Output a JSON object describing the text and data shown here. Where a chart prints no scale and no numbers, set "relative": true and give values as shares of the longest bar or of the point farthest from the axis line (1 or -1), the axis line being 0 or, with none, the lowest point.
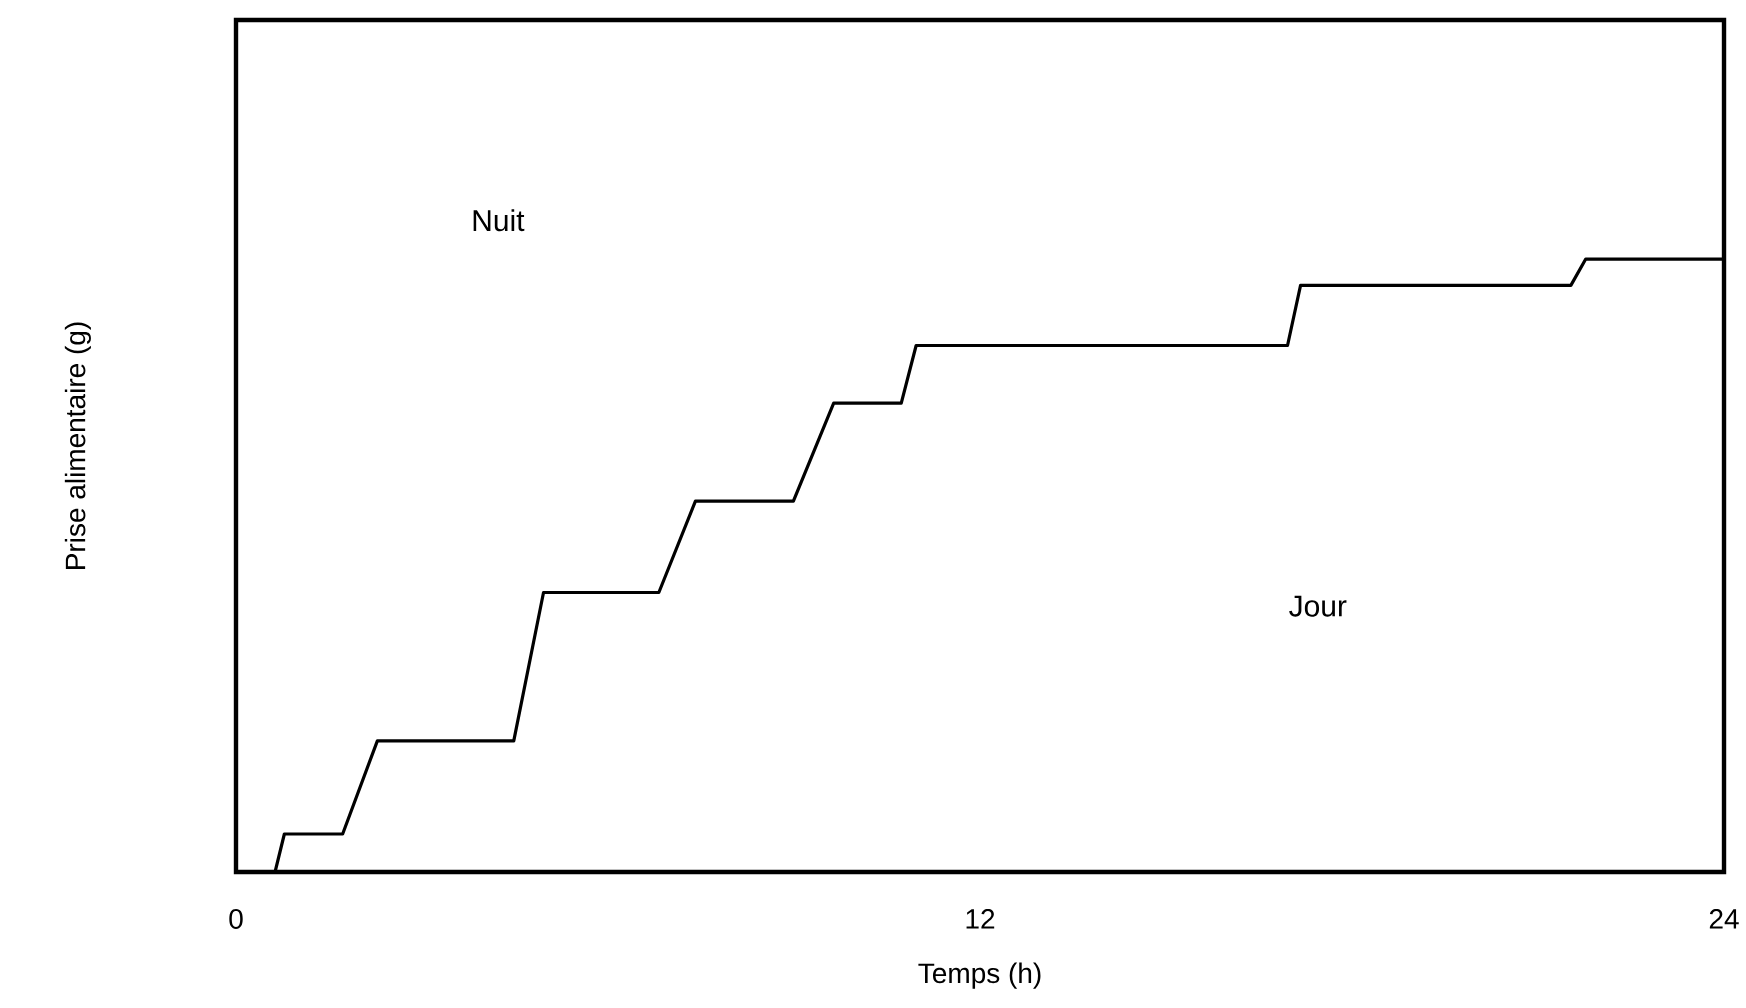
{
  "chart_data": {
    "type": "line",
    "relative": true,
    "xlabel": "Temps (h)",
    "ylabel": "Prise alimentaire (g)",
    "annotations": [
      "Nuit",
      "Jour"
    ],
    "xlim": [
      0,
      24
    ],
    "xticks": [
      0,
      12,
      24
    ],
    "grid": false,
    "marker": "none",
    "line_style": "solid",
    "series": [
      {
        "color": "#000000",
        "x": [
          0.63,
          0.78,
          1.72,
          2.28,
          4.48,
          4.96,
          6.82,
          7.41,
          8.99,
          9.64,
          10.73,
          10.97,
          16.96,
          17.17,
          21.53,
          21.77,
          24
        ],
        "values": [
          0,
          0.062,
          0.062,
          0.214,
          0.214,
          0.456,
          0.456,
          0.605,
          0.605,
          0.765,
          0.765,
          0.859,
          0.859,
          0.957,
          0.957,
          1,
          1
        ]
      }
    ]
  }
}
